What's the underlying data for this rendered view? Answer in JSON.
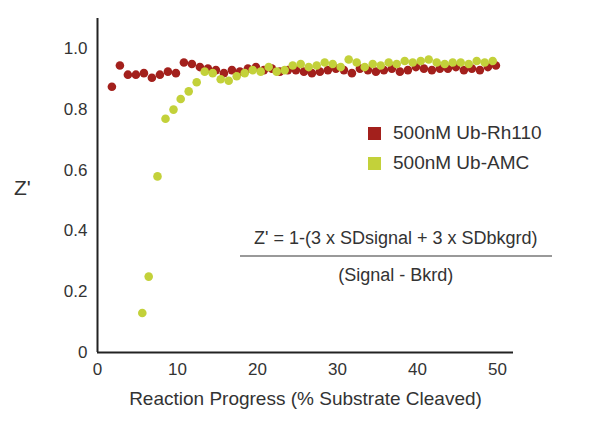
{
  "chart_data": {
    "type": "scatter",
    "x_label": "Reaction Progress (% Substrate Cleaved)",
    "y_label": "Z'",
    "xlim": [
      0,
      52
    ],
    "xticks": [
      0,
      10,
      20,
      30,
      40,
      50
    ],
    "ylim": [
      0,
      1.1
    ],
    "yticks": [
      0,
      0.2,
      0.4,
      0.6,
      0.8,
      {
        "value": 1,
        "label": "1.0"
      }
    ],
    "grid": false,
    "legend": "right",
    "formula": {
      "numerator": "Z' = 1-(3 x SDsignal + 3 x SDbkgrd)",
      "denominator": "(Signal - Bkrd)"
    },
    "series": [
      {
        "name": "500nM Ub-Rh110",
        "color": "#a3201c",
        "marker": "circle",
        "x": [
          1.8,
          2.8,
          3.8,
          4.8,
          5.8,
          6.8,
          7.8,
          8.8,
          9.8,
          10.8,
          11.8,
          12.8,
          13.8,
          14.8,
          15.8,
          16.8,
          17.8,
          18.8,
          19.8,
          20.8,
          21.8,
          22.8,
          23.8,
          24.8,
          25.8,
          26.8,
          27.8,
          28.8,
          29.8,
          30.8,
          31.8,
          32.8,
          33.8,
          34.8,
          35.8,
          36.8,
          37.8,
          38.8,
          39.8,
          40.8,
          41.8,
          42.8,
          43.8,
          44.8,
          45.8,
          46.8,
          47.8,
          48.8,
          49.8
        ],
        "values": [
          0.875,
          0.945,
          0.915,
          0.915,
          0.92,
          0.905,
          0.915,
          0.925,
          0.92,
          0.955,
          0.95,
          0.94,
          0.935,
          0.93,
          0.92,
          0.93,
          0.925,
          0.935,
          0.94,
          0.93,
          0.935,
          0.925,
          0.93,
          0.93,
          0.925,
          0.92,
          0.925,
          0.93,
          0.935,
          0.93,
          0.92,
          0.935,
          0.93,
          0.925,
          0.93,
          0.935,
          0.925,
          0.93,
          0.94,
          0.935,
          0.93,
          0.935,
          0.935,
          0.94,
          0.93,
          0.935,
          0.93,
          0.94,
          0.945
        ]
      },
      {
        "name": "500nM Ub-AMC",
        "color": "#c3d13a",
        "marker": "circle",
        "x": [
          5.6,
          6.4,
          7.5,
          8.5,
          9.5,
          10.4,
          11.4,
          12.4,
          13.4,
          14.4,
          15.4,
          16.4,
          17.4,
          18.4,
          19.4,
          20.4,
          21.4,
          22.4,
          23.4,
          24.4,
          25.4,
          26.4,
          27.4,
          28.4,
          29.4,
          30.4,
          31.4,
          32.4,
          33.4,
          34.4,
          35.4,
          36.4,
          37.4,
          38.4,
          39.4,
          40.4,
          41.4,
          42.4,
          43.4,
          44.4,
          45.4,
          46.4,
          47.4,
          48.4,
          49.4
        ],
        "values": [
          0.13,
          0.25,
          0.58,
          0.77,
          0.8,
          0.835,
          0.86,
          0.89,
          0.925,
          0.92,
          0.9,
          0.895,
          0.91,
          0.92,
          0.93,
          0.925,
          0.94,
          0.925,
          0.93,
          0.945,
          0.95,
          0.94,
          0.945,
          0.955,
          0.95,
          0.94,
          0.965,
          0.955,
          0.94,
          0.95,
          0.945,
          0.955,
          0.95,
          0.96,
          0.955,
          0.96,
          0.965,
          0.955,
          0.95,
          0.955,
          0.955,
          0.95,
          0.96,
          0.955,
          0.96
        ]
      }
    ]
  }
}
